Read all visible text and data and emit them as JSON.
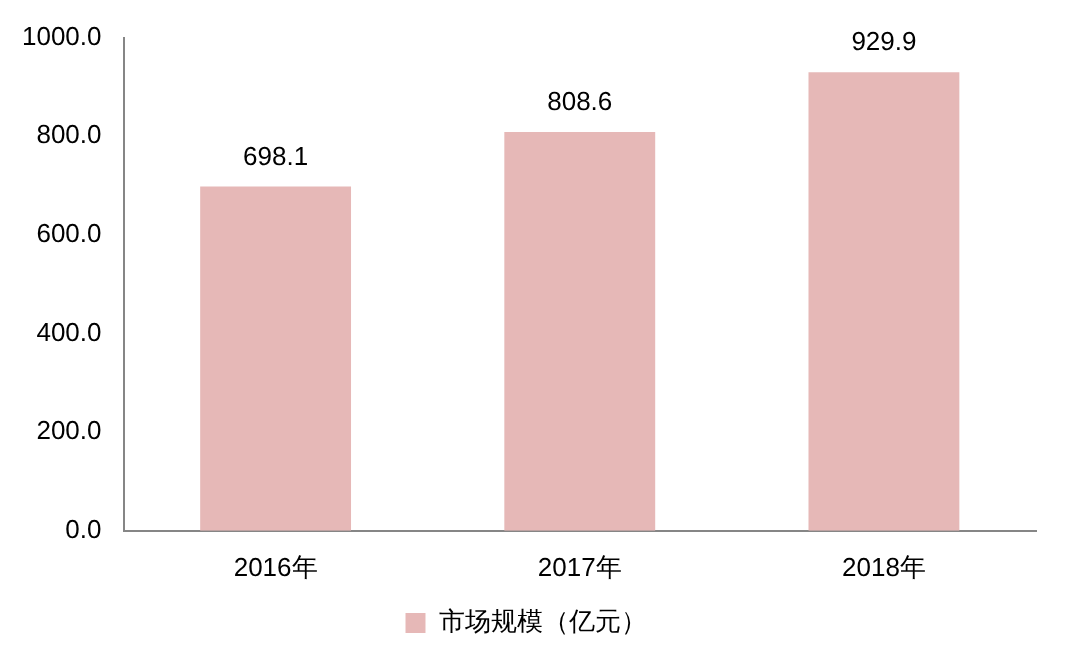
{
  "chart_data": {
    "type": "bar",
    "categories": [
      "2016年",
      "2017年",
      "2018年"
    ],
    "series": [
      {
        "name": "市场规模（亿元）",
        "color": "#e6b8b7",
        "values": [
          698.1,
          808.6,
          929.9
        ]
      }
    ],
    "ylim": [
      0,
      1000
    ],
    "yticks": [
      {
        "value": 0,
        "label": "0.0"
      },
      {
        "value": 200,
        "label": "200.0"
      },
      {
        "value": 400,
        "label": "400.0"
      },
      {
        "value": 600,
        "label": "600.0"
      },
      {
        "value": 800,
        "label": "800.0"
      },
      {
        "value": 1000,
        "label": "1000.0"
      }
    ],
    "grid": false,
    "legend": "bottom",
    "data_labels": true
  }
}
